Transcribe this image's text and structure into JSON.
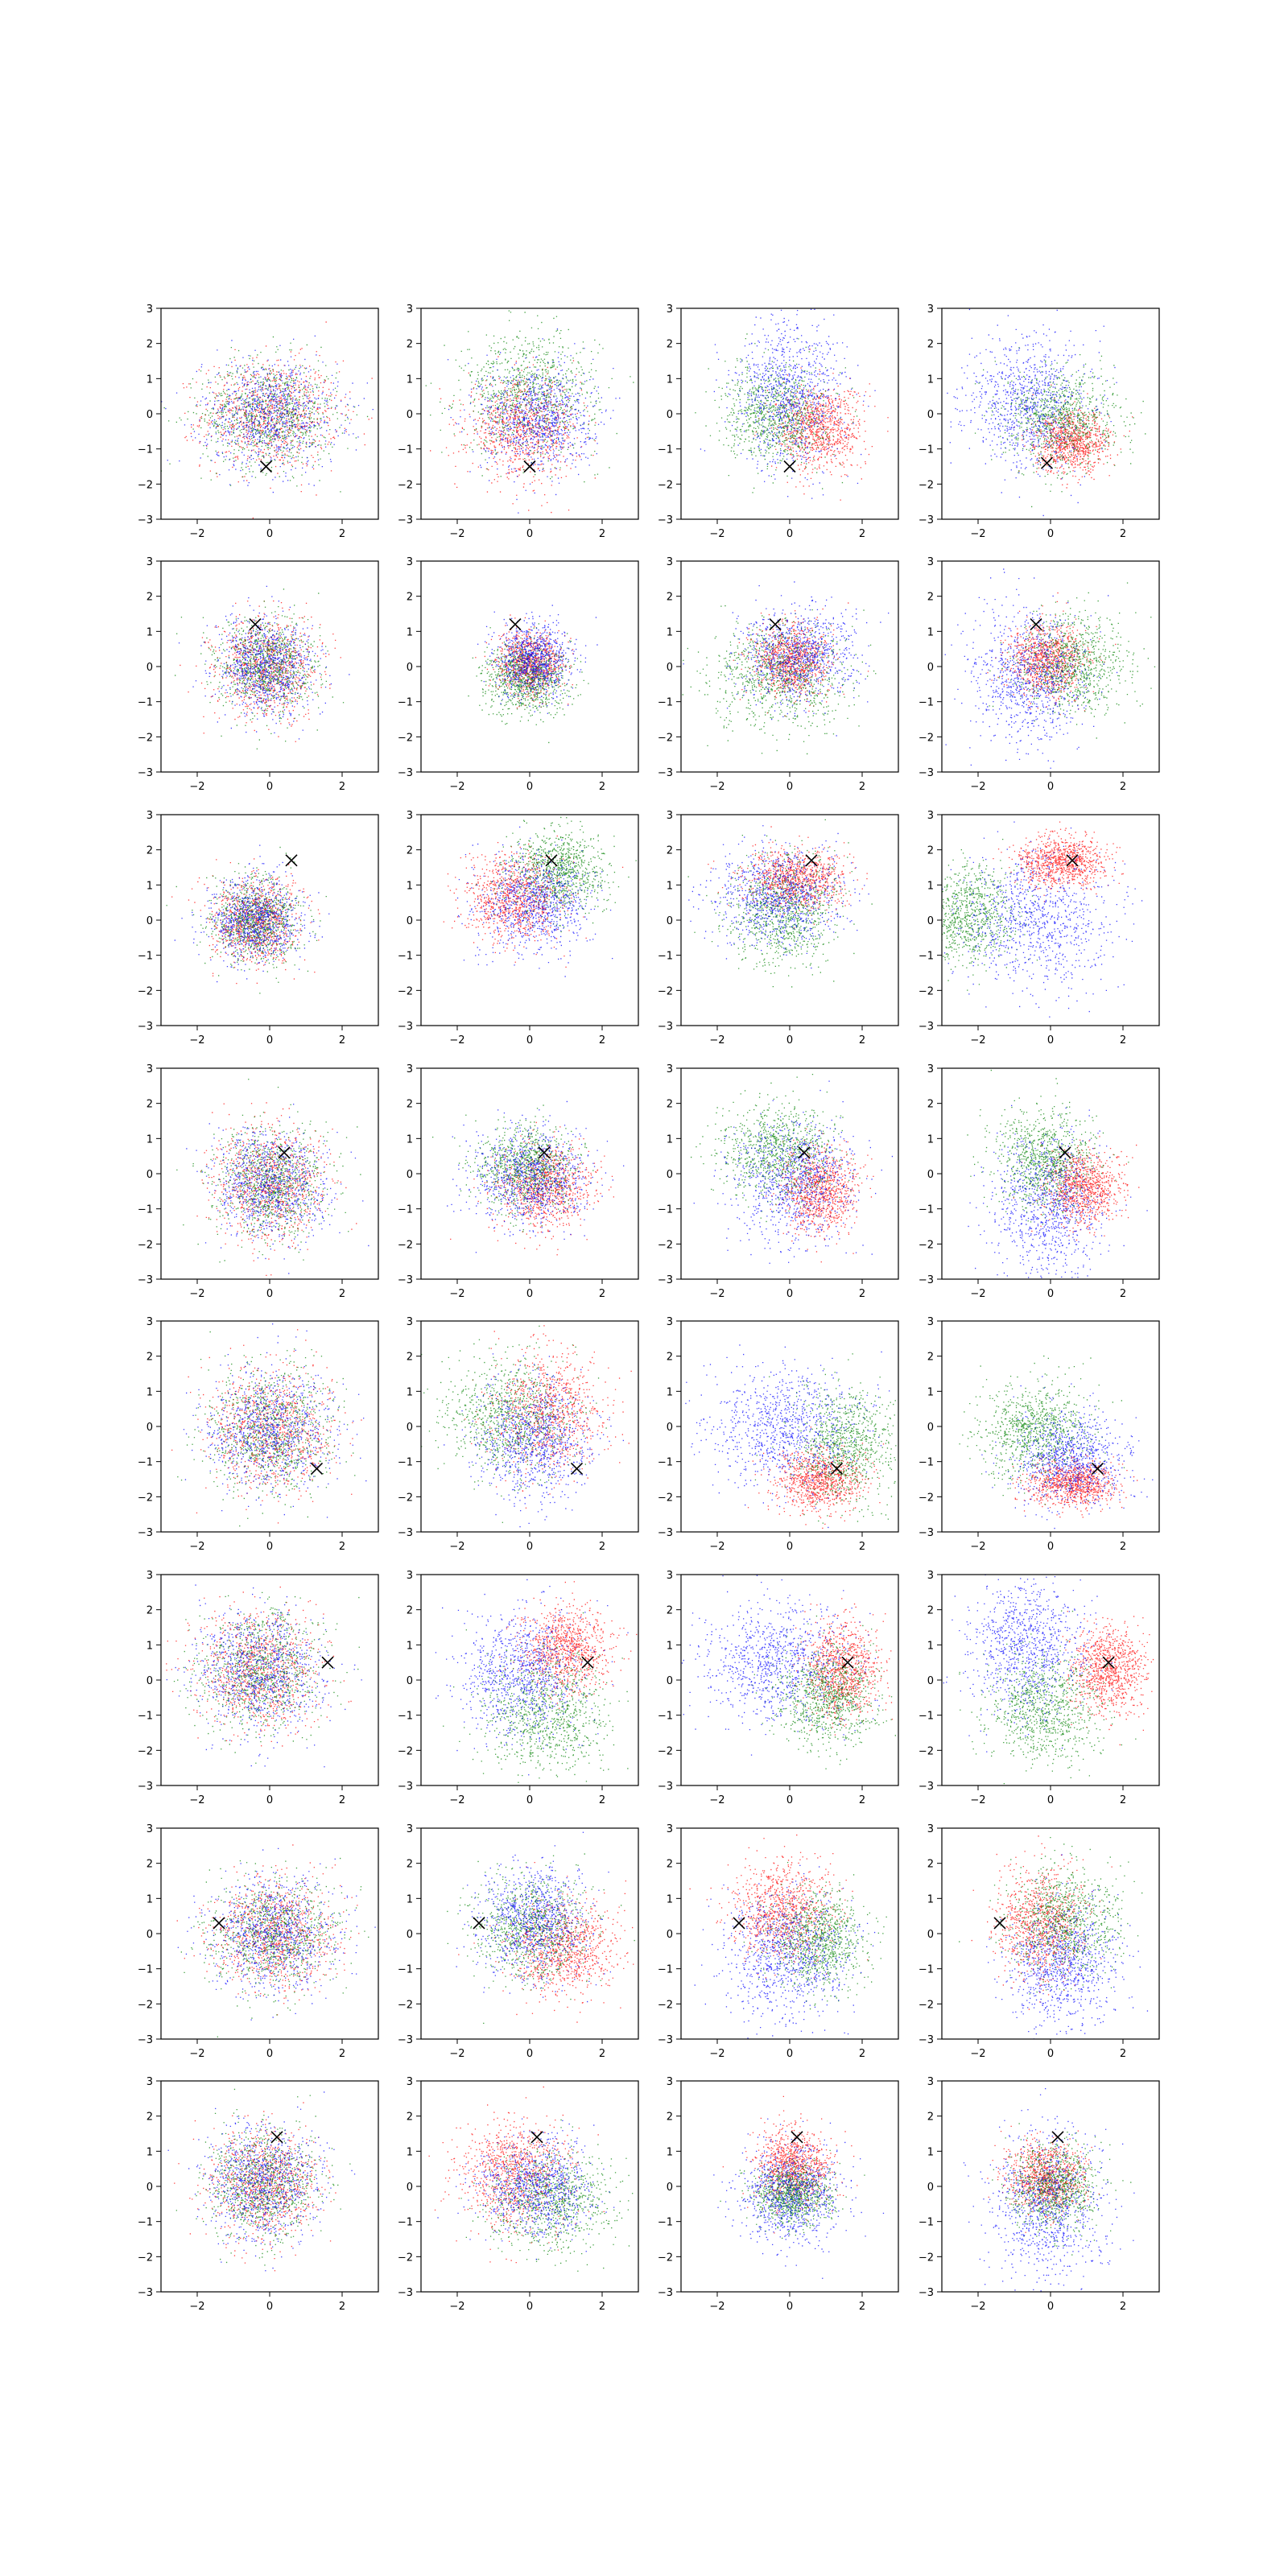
{
  "figure": {
    "rows": 8,
    "cols": 4,
    "colors": {
      "red": "#ff0000",
      "green": "#008000",
      "blue": "#0000ff",
      "marker": "#000000"
    }
  },
  "chart_data": {
    "type": "scatter",
    "xlim": [
      -3,
      3
    ],
    "ylim": [
      -3,
      3
    ],
    "xticks": [
      -2,
      0,
      2
    ],
    "yticks": [
      -3,
      -2,
      -1,
      0,
      1,
      2,
      3
    ],
    "xtick_labels": [
      "−2",
      "0",
      "2"
    ],
    "ytick_labels": [
      "−3",
      "−2",
      "−1",
      "0",
      "1",
      "2",
      "3"
    ],
    "grid": false,
    "series_colors": [
      "red",
      "green",
      "blue"
    ],
    "note": "approximate distributions read from the figure; each panel shows ~3000 points per color",
    "panels": [
      {
        "row": 0,
        "col": 0,
        "marker": [
          -0.1,
          -1.5
        ],
        "clouds": {
          "red": [
            0,
            0,
            1.1,
            0.9
          ],
          "green": [
            0,
            0,
            1.1,
            0.9
          ],
          "blue": [
            0,
            0,
            1.1,
            0.9
          ]
        }
      },
      {
        "row": 0,
        "col": 1,
        "marker": [
          0,
          -1.5
        ],
        "clouds": {
          "red": [
            -0.2,
            -0.4,
            0.9,
            0.8
          ],
          "green": [
            0,
            0.6,
            1.1,
            1.0
          ],
          "blue": [
            0.2,
            -0.1,
            0.9,
            0.9
          ]
        }
      },
      {
        "row": 0,
        "col": 2,
        "marker": [
          0,
          -1.5
        ],
        "clouds": {
          "red": [
            0.8,
            -0.4,
            0.7,
            0.7
          ],
          "green": [
            -0.4,
            0.0,
            0.8,
            0.8
          ],
          "blue": [
            0.0,
            0.6,
            0.9,
            1.2
          ]
        }
      },
      {
        "row": 0,
        "col": 3,
        "marker": [
          -0.1,
          -1.4
        ],
        "clouds": {
          "red": [
            0.6,
            -0.8,
            0.6,
            0.5
          ],
          "green": [
            0.3,
            -0.1,
            0.9,
            0.8
          ],
          "blue": [
            -0.6,
            0.3,
            1.0,
            1.1
          ]
        }
      },
      {
        "row": 1,
        "col": 0,
        "marker": [
          -0.4,
          1.2
        ],
        "clouds": {
          "red": [
            -0.1,
            0,
            0.8,
            0.8
          ],
          "green": [
            -0.1,
            0,
            0.8,
            0.8
          ],
          "blue": [
            -0.1,
            0,
            0.8,
            0.8
          ]
        }
      },
      {
        "row": 1,
        "col": 1,
        "marker": [
          -0.4,
          1.2
        ],
        "clouds": {
          "red": [
            0,
            0.1,
            0.5,
            0.5
          ],
          "green": [
            -0.1,
            -0.3,
            0.7,
            0.6
          ],
          "blue": [
            0.1,
            0.2,
            0.6,
            0.6
          ]
        }
      },
      {
        "row": 1,
        "col": 2,
        "marker": [
          -0.4,
          1.2
        ],
        "clouds": {
          "red": [
            0,
            0.2,
            0.6,
            0.6
          ],
          "green": [
            -0.3,
            -0.3,
            1.1,
            0.9
          ],
          "blue": [
            0.2,
            0.3,
            0.9,
            0.8
          ]
        }
      },
      {
        "row": 1,
        "col": 3,
        "marker": [
          -0.4,
          1.2
        ],
        "clouds": {
          "red": [
            -0.1,
            0.2,
            0.6,
            0.6
          ],
          "green": [
            0.6,
            0.1,
            0.9,
            0.8
          ],
          "blue": [
            -0.6,
            -0.3,
            0.9,
            1.1
          ]
        }
      },
      {
        "row": 2,
        "col": 0,
        "marker": [
          0.6,
          1.7
        ],
        "clouds": {
          "red": [
            -0.4,
            0,
            0.7,
            0.7
          ],
          "green": [
            -0.4,
            0,
            0.7,
            0.7
          ],
          "blue": [
            -0.4,
            0,
            0.7,
            0.7
          ]
        }
      },
      {
        "row": 2,
        "col": 1,
        "marker": [
          0.6,
          1.7
        ],
        "clouds": {
          "red": [
            -0.4,
            0.6,
            0.8,
            0.7
          ],
          "green": [
            0.8,
            1.4,
            0.8,
            0.7
          ],
          "blue": [
            0.1,
            0.5,
            0.9,
            0.8
          ]
        }
      },
      {
        "row": 2,
        "col": 2,
        "marker": [
          0.6,
          1.7
        ],
        "clouds": {
          "red": [
            0.2,
            1.2,
            0.8,
            0.5
          ],
          "green": [
            -0.2,
            0.2,
            0.9,
            0.9
          ],
          "blue": [
            -0.3,
            0.7,
            1.0,
            0.8
          ]
        }
      },
      {
        "row": 2,
        "col": 3,
        "marker": [
          0.6,
          1.7
        ],
        "clouds": {
          "red": [
            0.3,
            1.7,
            0.7,
            0.4
          ],
          "green": [
            -2.3,
            0.2,
            0.8,
            0.8
          ],
          "blue": [
            -0.4,
            0.0,
            1.2,
            1.1
          ]
        }
      },
      {
        "row": 3,
        "col": 0,
        "marker": [
          0.4,
          0.6
        ],
        "clouds": {
          "red": [
            0,
            -0.3,
            0.9,
            0.9
          ],
          "green": [
            0,
            -0.3,
            0.9,
            0.9
          ],
          "blue": [
            0,
            -0.3,
            0.9,
            0.9
          ]
        }
      },
      {
        "row": 3,
        "col": 1,
        "marker": [
          0.4,
          0.6
        ],
        "clouds": {
          "red": [
            0.4,
            -0.4,
            0.8,
            0.7
          ],
          "green": [
            -0.1,
            0.2,
            0.8,
            0.7
          ],
          "blue": [
            0,
            -0.1,
            0.9,
            0.8
          ]
        }
      },
      {
        "row": 3,
        "col": 2,
        "marker": [
          0.4,
          0.6
        ],
        "clouds": {
          "red": [
            0.8,
            -0.5,
            0.6,
            0.7
          ],
          "green": [
            -0.3,
            0.6,
            0.9,
            0.8
          ],
          "blue": [
            0.1,
            -0.2,
            1.0,
            1.0
          ]
        }
      },
      {
        "row": 3,
        "col": 3,
        "marker": [
          0.4,
          0.6
        ],
        "clouds": {
          "red": [
            0.9,
            -0.4,
            0.6,
            0.6
          ],
          "green": [
            -0.2,
            0.4,
            0.8,
            0.8
          ],
          "blue": [
            -0.1,
            -0.9,
            0.9,
            1.2
          ]
        }
      },
      {
        "row": 4,
        "col": 0,
        "marker": [
          1.3,
          -1.2
        ],
        "clouds": {
          "red": [
            0,
            -0.1,
            1.0,
            1.0
          ],
          "green": [
            0,
            -0.1,
            1.0,
            1.0
          ],
          "blue": [
            0,
            -0.1,
            1.0,
            1.0
          ]
        }
      },
      {
        "row": 4,
        "col": 1,
        "marker": [
          1.3,
          -1.2
        ],
        "clouds": {
          "red": [
            0.5,
            0.4,
            0.9,
            1.0
          ],
          "green": [
            -0.6,
            0.3,
            1.0,
            1.0
          ],
          "blue": [
            0.1,
            -0.4,
            0.9,
            1.0
          ]
        }
      },
      {
        "row": 4,
        "col": 2,
        "marker": [
          1.3,
          -1.2
        ],
        "clouds": {
          "red": [
            0.8,
            -1.5,
            0.7,
            0.5
          ],
          "green": [
            1.5,
            -0.5,
            0.8,
            1.0
          ],
          "blue": [
            -0.2,
            0.0,
            1.2,
            1.0
          ]
        }
      },
      {
        "row": 4,
        "col": 3,
        "marker": [
          1.3,
          -1.2
        ],
        "clouds": {
          "red": [
            0.6,
            -1.6,
            0.7,
            0.4
          ],
          "green": [
            -0.4,
            -0.1,
            0.9,
            0.8
          ],
          "blue": [
            0.5,
            -0.9,
            0.9,
            0.8
          ]
        }
      },
      {
        "row": 5,
        "col": 0,
        "marker": [
          1.6,
          0.5
        ],
        "clouds": {
          "red": [
            -0.3,
            0.3,
            1.0,
            1.0
          ],
          "green": [
            -0.3,
            0.3,
            1.0,
            1.0
          ],
          "blue": [
            -0.3,
            0.3,
            1.0,
            1.0
          ]
        }
      },
      {
        "row": 5,
        "col": 1,
        "marker": [
          1.6,
          0.5
        ],
        "clouds": {
          "red": [
            1.0,
            0.9,
            0.7,
            0.7
          ],
          "green": [
            0.4,
            -1.0,
            1.0,
            1.0
          ],
          "blue": [
            -0.2,
            0.2,
            1.0,
            1.0
          ]
        }
      },
      {
        "row": 5,
        "col": 2,
        "marker": [
          1.6,
          0.5
        ],
        "clouds": {
          "red": [
            1.4,
            0.3,
            0.6,
            0.8
          ],
          "green": [
            1.0,
            -0.5,
            0.8,
            0.8
          ],
          "blue": [
            -0.3,
            0.5,
            1.2,
            1.0
          ]
        }
      },
      {
        "row": 5,
        "col": 3,
        "marker": [
          1.6,
          0.5
        ],
        "clouds": {
          "red": [
            1.6,
            0.3,
            0.6,
            0.7
          ],
          "green": [
            -0.2,
            -0.8,
            0.9,
            0.9
          ],
          "blue": [
            -0.7,
            1.0,
            0.9,
            1.1
          ]
        }
      },
      {
        "row": 6,
        "col": 0,
        "marker": [
          -1.4,
          0.3
        ],
        "clouds": {
          "red": [
            0.1,
            0,
            1.0,
            0.9
          ],
          "green": [
            0.1,
            0,
            1.0,
            0.9
          ],
          "blue": [
            0.1,
            0,
            1.0,
            0.9
          ]
        }
      },
      {
        "row": 6,
        "col": 1,
        "marker": [
          -1.4,
          0.3
        ],
        "clouds": {
          "red": [
            0.9,
            -0.4,
            0.9,
            0.8
          ],
          "green": [
            0.0,
            0.2,
            0.9,
            0.9
          ],
          "blue": [
            0.1,
            0.4,
            0.9,
            0.9
          ]
        }
      },
      {
        "row": 6,
        "col": 2,
        "marker": [
          -1.4,
          0.3
        ],
        "clouds": {
          "red": [
            -0.2,
            0.7,
            0.8,
            0.8
          ],
          "green": [
            0.8,
            -0.2,
            0.8,
            0.8
          ],
          "blue": [
            -0.1,
            -0.6,
            1.0,
            1.1
          ]
        }
      },
      {
        "row": 6,
        "col": 3,
        "marker": [
          -1.4,
          0.3
        ],
        "clouds": {
          "red": [
            -0.3,
            0.3,
            0.7,
            0.9
          ],
          "green": [
            0.4,
            0.4,
            0.9,
            0.9
          ],
          "blue": [
            0.3,
            -0.9,
            0.9,
            1.0
          ]
        }
      },
      {
        "row": 7,
        "col": 0,
        "marker": [
          0.2,
          1.4
        ],
        "clouds": {
          "red": [
            -0.2,
            0.1,
            0.9,
            0.9
          ],
          "green": [
            -0.2,
            0.1,
            0.9,
            0.9
          ],
          "blue": [
            -0.2,
            0.1,
            0.9,
            0.9
          ]
        }
      },
      {
        "row": 7,
        "col": 1,
        "marker": [
          0.2,
          1.4
        ],
        "clouds": {
          "red": [
            -0.4,
            0.4,
            0.9,
            0.9
          ],
          "green": [
            0.6,
            -0.4,
            1.0,
            0.8
          ],
          "blue": [
            0.2,
            0.0,
            0.9,
            0.8
          ]
        }
      },
      {
        "row": 7,
        "col": 2,
        "marker": [
          0.2,
          1.4
        ],
        "clouds": {
          "red": [
            0.1,
            0.6,
            0.6,
            0.6
          ],
          "green": [
            0.1,
            -0.2,
            0.6,
            0.5
          ],
          "blue": [
            0.0,
            -0.2,
            0.8,
            0.8
          ]
        }
      },
      {
        "row": 7,
        "col": 3,
        "marker": [
          0.2,
          1.4
        ],
        "clouds": {
          "red": [
            -0.1,
            0.3,
            0.6,
            0.6
          ],
          "green": [
            0.1,
            0.0,
            0.7,
            0.7
          ],
          "blue": [
            -0.1,
            -0.6,
            0.9,
            1.2
          ]
        }
      }
    ]
  }
}
